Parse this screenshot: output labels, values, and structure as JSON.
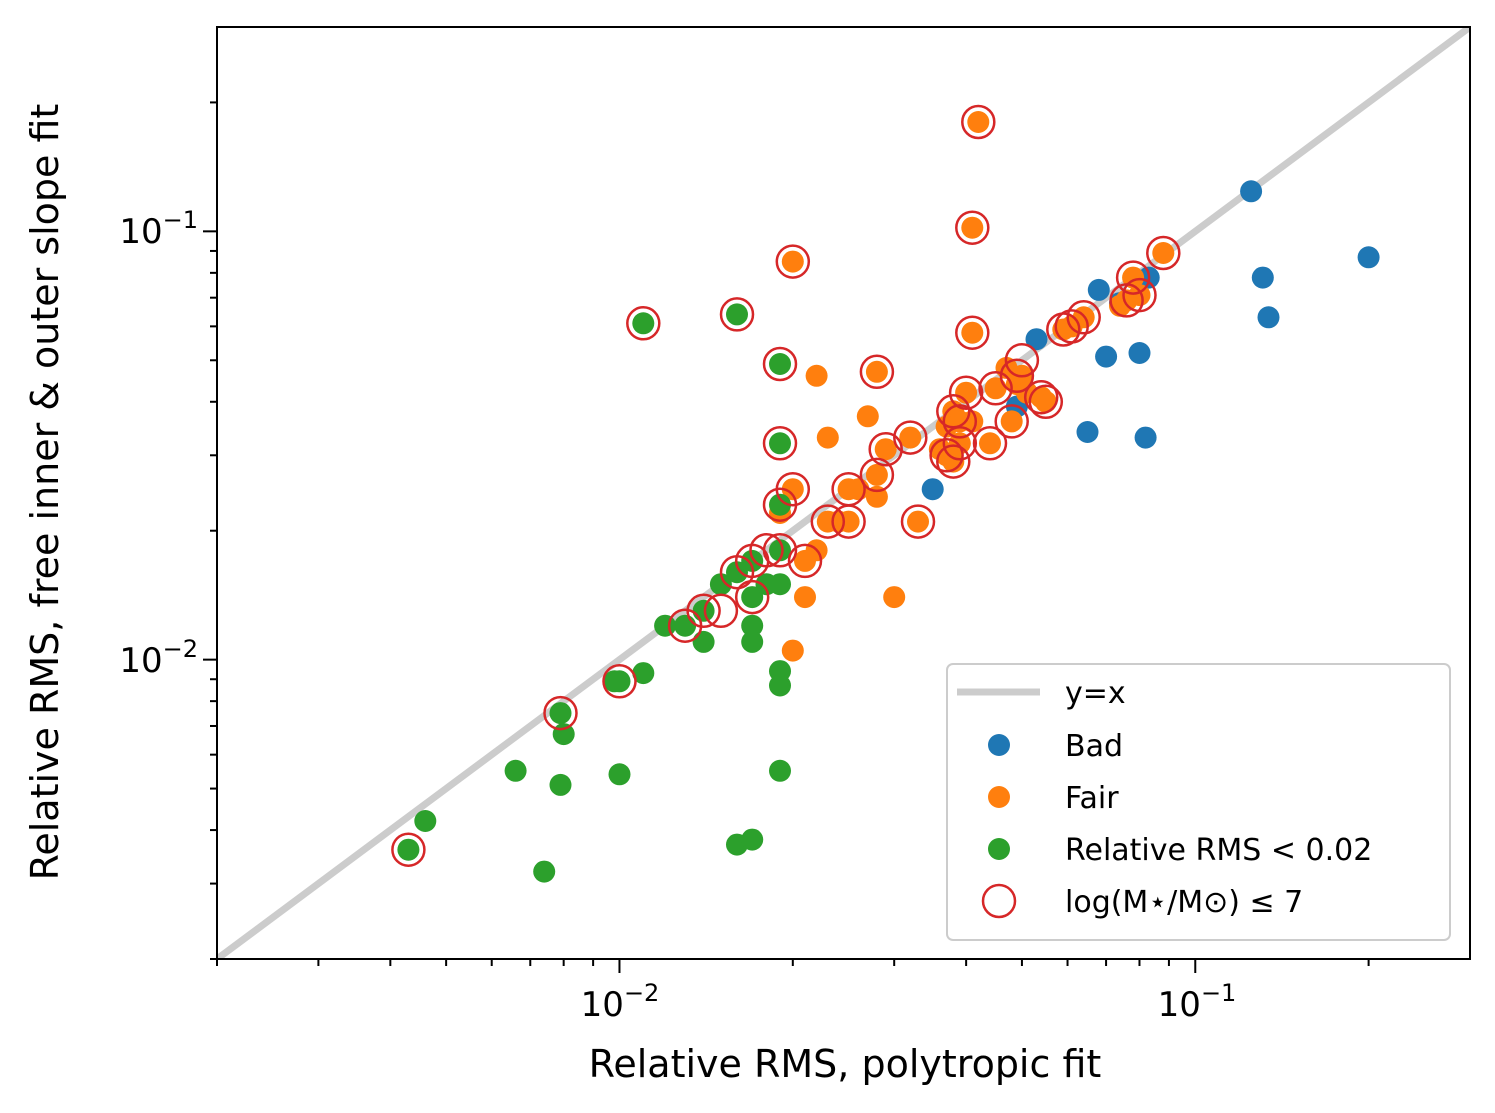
{
  "chart_data": {
    "type": "scatter",
    "xlabel": "Relative RMS, polytropic fit",
    "ylabel": "Relative RMS, free inner & outer slope fit",
    "xscale": "log",
    "yscale": "log",
    "xlim": [
      0.002,
      0.3
    ],
    "ylim": [
      0.002,
      0.3
    ],
    "grid": false,
    "legend_position": "lower-right",
    "x_ticks": [
      {
        "base": "10",
        "exp": "−2",
        "value": 0.01
      },
      {
        "base": "10",
        "exp": "−1",
        "value": 0.1
      }
    ],
    "y_ticks": [
      {
        "base": "10",
        "exp": "−2",
        "value": 0.01
      },
      {
        "base": "10",
        "exp": "−1",
        "value": 0.1
      }
    ],
    "reference_line": {
      "name": "y=x",
      "color": "#cccccc"
    },
    "series": [
      {
        "name": "Bad",
        "color": "#1f77b4",
        "points": [
          [
            0.125,
            0.124
          ],
          [
            0.2,
            0.087
          ],
          [
            0.131,
            0.078
          ],
          [
            0.134,
            0.063
          ],
          [
            0.068,
            0.073
          ],
          [
            0.083,
            0.078
          ],
          [
            0.074,
            0.068
          ],
          [
            0.053,
            0.056
          ],
          [
            0.07,
            0.051
          ],
          [
            0.08,
            0.052
          ],
          [
            0.065,
            0.034
          ],
          [
            0.082,
            0.033
          ],
          [
            0.035,
            0.025
          ],
          [
            0.049,
            0.039
          ]
        ]
      },
      {
        "name": "Fair",
        "color": "#ff7f0e",
        "points": [
          [
            0.042,
            0.18
          ],
          [
            0.041,
            0.102
          ],
          [
            0.02,
            0.085
          ],
          [
            0.088,
            0.089
          ],
          [
            0.078,
            0.078
          ],
          [
            0.08,
            0.071
          ],
          [
            0.076,
            0.069
          ],
          [
            0.074,
            0.067
          ],
          [
            0.064,
            0.063
          ],
          [
            0.061,
            0.06
          ],
          [
            0.059,
            0.059
          ],
          [
            0.041,
            0.058
          ],
          [
            0.028,
            0.047
          ],
          [
            0.022,
            0.046
          ],
          [
            0.047,
            0.048
          ],
          [
            0.05,
            0.046
          ],
          [
            0.049,
            0.044
          ],
          [
            0.051,
            0.042
          ],
          [
            0.054,
            0.041
          ],
          [
            0.055,
            0.04
          ],
          [
            0.048,
            0.036
          ],
          [
            0.045,
            0.043
          ],
          [
            0.04,
            0.042
          ],
          [
            0.027,
            0.037
          ],
          [
            0.038,
            0.038
          ],
          [
            0.039,
            0.036
          ],
          [
            0.037,
            0.035
          ],
          [
            0.041,
            0.036
          ],
          [
            0.032,
            0.033
          ],
          [
            0.023,
            0.033
          ],
          [
            0.029,
            0.031
          ],
          [
            0.036,
            0.031
          ],
          [
            0.039,
            0.032
          ],
          [
            0.044,
            0.032
          ],
          [
            0.037,
            0.03
          ],
          [
            0.038,
            0.029
          ],
          [
            0.028,
            0.027
          ],
          [
            0.028,
            0.024
          ],
          [
            0.02,
            0.025
          ],
          [
            0.025,
            0.025
          ],
          [
            0.026,
            0.025
          ],
          [
            0.033,
            0.021
          ],
          [
            0.019,
            0.022
          ],
          [
            0.024,
            0.021
          ],
          [
            0.023,
            0.021
          ],
          [
            0.025,
            0.021
          ],
          [
            0.022,
            0.018
          ],
          [
            0.021,
            0.017
          ],
          [
            0.021,
            0.014
          ],
          [
            0.03,
            0.014
          ],
          [
            0.02,
            0.0105
          ]
        ]
      },
      {
        "name": "Relative RMS < 0.02",
        "color": "#2ca02c",
        "points": [
          [
            0.011,
            0.061
          ],
          [
            0.016,
            0.064
          ],
          [
            0.019,
            0.049
          ],
          [
            0.019,
            0.032
          ],
          [
            0.019,
            0.023
          ],
          [
            0.019,
            0.018
          ],
          [
            0.017,
            0.017
          ],
          [
            0.016,
            0.016
          ],
          [
            0.017,
            0.014
          ],
          [
            0.015,
            0.015
          ],
          [
            0.018,
            0.015
          ],
          [
            0.019,
            0.015
          ],
          [
            0.013,
            0.012
          ],
          [
            0.014,
            0.013
          ],
          [
            0.012,
            0.012
          ],
          [
            0.014,
            0.011
          ],
          [
            0.017,
            0.012
          ],
          [
            0.017,
            0.011
          ],
          [
            0.019,
            0.0094
          ],
          [
            0.019,
            0.0087
          ],
          [
            0.0098,
            0.0089
          ],
          [
            0.01,
            0.0089
          ],
          [
            0.011,
            0.0093
          ],
          [
            0.0079,
            0.0075
          ],
          [
            0.008,
            0.0067
          ],
          [
            0.0066,
            0.0055
          ],
          [
            0.0079,
            0.0051
          ],
          [
            0.01,
            0.0054
          ],
          [
            0.019,
            0.0055
          ],
          [
            0.0046,
            0.0042
          ],
          [
            0.0043,
            0.0036
          ],
          [
            0.0074,
            0.0032
          ],
          [
            0.016,
            0.0037
          ],
          [
            0.017,
            0.0038
          ]
        ]
      },
      {
        "name": "log(M⋆/M⊙) ≤ 7",
        "color": "#d62728",
        "marker": "open-circle",
        "points": [
          [
            0.042,
            0.18
          ],
          [
            0.041,
            0.102
          ],
          [
            0.02,
            0.085
          ],
          [
            0.088,
            0.089
          ],
          [
            0.078,
            0.078
          ],
          [
            0.08,
            0.071
          ],
          [
            0.076,
            0.069
          ],
          [
            0.064,
            0.063
          ],
          [
            0.061,
            0.06
          ],
          [
            0.059,
            0.059
          ],
          [
            0.041,
            0.058
          ],
          [
            0.028,
            0.047
          ],
          [
            0.05,
            0.05
          ],
          [
            0.049,
            0.046
          ],
          [
            0.054,
            0.041
          ],
          [
            0.055,
            0.04
          ],
          [
            0.048,
            0.036
          ],
          [
            0.045,
            0.043
          ],
          [
            0.04,
            0.042
          ],
          [
            0.039,
            0.036
          ],
          [
            0.038,
            0.038
          ],
          [
            0.032,
            0.033
          ],
          [
            0.029,
            0.031
          ],
          [
            0.037,
            0.03
          ],
          [
            0.038,
            0.029
          ],
          [
            0.039,
            0.032
          ],
          [
            0.044,
            0.032
          ],
          [
            0.028,
            0.027
          ],
          [
            0.025,
            0.025
          ],
          [
            0.02,
            0.025
          ],
          [
            0.033,
            0.021
          ],
          [
            0.023,
            0.021
          ],
          [
            0.025,
            0.021
          ],
          [
            0.019,
            0.023
          ],
          [
            0.021,
            0.017
          ],
          [
            0.018,
            0.018
          ],
          [
            0.019,
            0.018
          ],
          [
            0.017,
            0.017
          ],
          [
            0.016,
            0.016
          ],
          [
            0.017,
            0.014
          ],
          [
            0.015,
            0.013
          ],
          [
            0.013,
            0.012
          ],
          [
            0.014,
            0.013
          ],
          [
            0.011,
            0.061
          ],
          [
            0.016,
            0.064
          ],
          [
            0.019,
            0.049
          ],
          [
            0.019,
            0.032
          ],
          [
            0.01,
            0.0089
          ],
          [
            0.0079,
            0.0075
          ],
          [
            0.0043,
            0.0036
          ]
        ]
      }
    ]
  }
}
